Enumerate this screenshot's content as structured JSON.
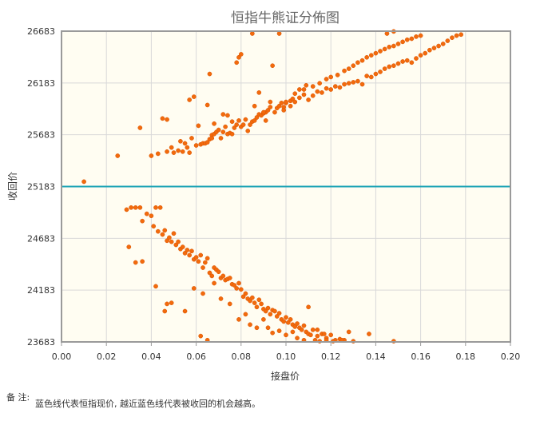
{
  "chart_data": {
    "type": "scatter",
    "title": "恒指牛熊证分佈图",
    "xlabel": "接盘价",
    "ylabel": "收回价",
    "xlim": [
      0,
      0.2
    ],
    "ylim": [
      23683,
      26683
    ],
    "x_ticks": [
      "0.00",
      "0.02",
      "0.04",
      "0.06",
      "0.08",
      "0.10",
      "0.12",
      "0.14",
      "0.16",
      "0.18",
      "0.20"
    ],
    "y_ticks": [
      "23683",
      "24183",
      "24683",
      "25183",
      "25683",
      "26183",
      "26683"
    ],
    "grid": true,
    "reference_line": {
      "y": 25183,
      "color": "#1ba3b5"
    },
    "colors": {
      "points": "#f26a0d",
      "plot_bg": "#fffdf2",
      "grid": "#d9d9d9",
      "frame": "#9a9a9a"
    },
    "series": [
      {
        "points": [
          [
            0.01,
            25230
          ],
          [
            0.025,
            25480
          ],
          [
            0.035,
            25750
          ],
          [
            0.04,
            25480
          ],
          [
            0.043,
            25500
          ],
          [
            0.045,
            25840
          ],
          [
            0.047,
            25830
          ],
          [
            0.047,
            25520
          ],
          [
            0.049,
            25560
          ],
          [
            0.05,
            25510
          ],
          [
            0.052,
            25530
          ],
          [
            0.053,
            25620
          ],
          [
            0.054,
            25520
          ],
          [
            0.055,
            25600
          ],
          [
            0.056,
            25560
          ],
          [
            0.057,
            25510
          ],
          [
            0.058,
            25650
          ],
          [
            0.06,
            25580
          ],
          [
            0.061,
            25770
          ],
          [
            0.062,
            25590
          ],
          [
            0.063,
            25600
          ],
          [
            0.064,
            25600
          ],
          [
            0.065,
            25610
          ],
          [
            0.066,
            25640
          ],
          [
            0.067,
            25680
          ],
          [
            0.068,
            25690
          ],
          [
            0.069,
            25710
          ],
          [
            0.07,
            25730
          ],
          [
            0.072,
            25710
          ],
          [
            0.073,
            25760
          ],
          [
            0.074,
            25690
          ],
          [
            0.075,
            25700
          ],
          [
            0.076,
            25690
          ],
          [
            0.077,
            25750
          ],
          [
            0.078,
            25780
          ],
          [
            0.079,
            25820
          ],
          [
            0.08,
            25760
          ],
          [
            0.081,
            25780
          ],
          [
            0.082,
            25830
          ],
          [
            0.084,
            25780
          ],
          [
            0.085,
            25810
          ],
          [
            0.086,
            25820
          ],
          [
            0.087,
            25850
          ],
          [
            0.088,
            25880
          ],
          [
            0.089,
            25870
          ],
          [
            0.09,
            25890
          ],
          [
            0.091,
            25900
          ],
          [
            0.092,
            25920
          ],
          [
            0.093,
            25950
          ],
          [
            0.095,
            25900
          ],
          [
            0.096,
            25940
          ],
          [
            0.097,
            25960
          ],
          [
            0.098,
            25990
          ],
          [
            0.099,
            25950
          ],
          [
            0.1,
            25990
          ],
          [
            0.102,
            26010
          ],
          [
            0.103,
            26030
          ],
          [
            0.104,
            26000
          ],
          [
            0.106,
            26040
          ],
          [
            0.108,
            26070
          ],
          [
            0.11,
            26020
          ],
          [
            0.112,
            26060
          ],
          [
            0.114,
            26100
          ],
          [
            0.116,
            26090
          ],
          [
            0.118,
            26130
          ],
          [
            0.12,
            26120
          ],
          [
            0.122,
            26150
          ],
          [
            0.124,
            26140
          ],
          [
            0.126,
            26170
          ],
          [
            0.128,
            26180
          ],
          [
            0.13,
            26190
          ],
          [
            0.132,
            26200
          ],
          [
            0.134,
            26170
          ],
          [
            0.136,
            26250
          ],
          [
            0.138,
            26240
          ],
          [
            0.14,
            26270
          ],
          [
            0.142,
            26290
          ],
          [
            0.144,
            26320
          ],
          [
            0.146,
            26340
          ],
          [
            0.148,
            26350
          ],
          [
            0.15,
            26370
          ],
          [
            0.152,
            26390
          ],
          [
            0.154,
            26400
          ],
          [
            0.156,
            26380
          ],
          [
            0.158,
            26420
          ],
          [
            0.16,
            26450
          ],
          [
            0.162,
            26470
          ],
          [
            0.164,
            26500
          ],
          [
            0.166,
            26520
          ],
          [
            0.168,
            26540
          ],
          [
            0.17,
            26560
          ],
          [
            0.172,
            26590
          ],
          [
            0.174,
            26620
          ],
          [
            0.176,
            26640
          ],
          [
            0.178,
            26650
          ],
          [
            0.145,
            26660
          ],
          [
            0.148,
            26680
          ],
          [
            0.057,
            26020
          ],
          [
            0.059,
            26050
          ],
          [
            0.065,
            25970
          ],
          [
            0.068,
            25790
          ],
          [
            0.072,
            25880
          ],
          [
            0.076,
            25810
          ],
          [
            0.078,
            26380
          ],
          [
            0.079,
            26430
          ],
          [
            0.08,
            26460
          ],
          [
            0.085,
            26660
          ],
          [
            0.088,
            26090
          ],
          [
            0.09,
            25900
          ],
          [
            0.093,
            26000
          ],
          [
            0.094,
            26350
          ],
          [
            0.097,
            26660
          ],
          [
            0.1,
            26000
          ],
          [
            0.104,
            26080
          ],
          [
            0.108,
            26120
          ],
          [
            0.112,
            26150
          ],
          [
            0.115,
            26180
          ],
          [
            0.118,
            26220
          ],
          [
            0.12,
            26240
          ],
          [
            0.123,
            26260
          ],
          [
            0.126,
            26300
          ],
          [
            0.128,
            26320
          ],
          [
            0.13,
            26350
          ],
          [
            0.132,
            26380
          ],
          [
            0.134,
            26400
          ],
          [
            0.136,
            26430
          ],
          [
            0.138,
            26450
          ],
          [
            0.14,
            26470
          ],
          [
            0.142,
            26490
          ],
          [
            0.144,
            26510
          ],
          [
            0.146,
            26530
          ],
          [
            0.148,
            26540
          ],
          [
            0.15,
            26560
          ],
          [
            0.152,
            26580
          ],
          [
            0.154,
            26600
          ],
          [
            0.156,
            26610
          ],
          [
            0.158,
            26630
          ],
          [
            0.16,
            26640
          ],
          [
            0.066,
            26270
          ],
          [
            0.067,
            25650
          ],
          [
            0.071,
            25650
          ],
          [
            0.074,
            25870
          ],
          [
            0.083,
            25720
          ],
          [
            0.086,
            25960
          ],
          [
            0.091,
            25820
          ],
          [
            0.099,
            25920
          ],
          [
            0.102,
            25960
          ],
          [
            0.106,
            26120
          ],
          [
            0.109,
            26160
          ],
          [
            0.029,
            24960
          ],
          [
            0.031,
            24980
          ],
          [
            0.033,
            24980
          ],
          [
            0.035,
            24980
          ],
          [
            0.036,
            24850
          ],
          [
            0.038,
            24920
          ],
          [
            0.04,
            24900
          ],
          [
            0.041,
            24800
          ],
          [
            0.042,
            24980
          ],
          [
            0.043,
            24750
          ],
          [
            0.044,
            24980
          ],
          [
            0.045,
            24720
          ],
          [
            0.046,
            24760
          ],
          [
            0.047,
            24660
          ],
          [
            0.048,
            24690
          ],
          [
            0.049,
            24650
          ],
          [
            0.05,
            24730
          ],
          [
            0.051,
            24620
          ],
          [
            0.052,
            24650
          ],
          [
            0.053,
            24580
          ],
          [
            0.054,
            24600
          ],
          [
            0.055,
            24540
          ],
          [
            0.056,
            24570
          ],
          [
            0.057,
            24520
          ],
          [
            0.058,
            24560
          ],
          [
            0.059,
            24480
          ],
          [
            0.06,
            24500
          ],
          [
            0.061,
            24460
          ],
          [
            0.062,
            24520
          ],
          [
            0.063,
            24400
          ],
          [
            0.064,
            24450
          ],
          [
            0.065,
            24490
          ],
          [
            0.066,
            24350
          ],
          [
            0.067,
            24320
          ],
          [
            0.068,
            24400
          ],
          [
            0.069,
            24380
          ],
          [
            0.07,
            24360
          ],
          [
            0.071,
            24300
          ],
          [
            0.072,
            24320
          ],
          [
            0.073,
            24280
          ],
          [
            0.074,
            24290
          ],
          [
            0.075,
            24300
          ],
          [
            0.076,
            24240
          ],
          [
            0.077,
            24230
          ],
          [
            0.078,
            24200
          ],
          [
            0.079,
            24250
          ],
          [
            0.08,
            24190
          ],
          [
            0.081,
            24120
          ],
          [
            0.082,
            24150
          ],
          [
            0.083,
            24100
          ],
          [
            0.084,
            24080
          ],
          [
            0.085,
            24110
          ],
          [
            0.086,
            24060
          ],
          [
            0.087,
            24020
          ],
          [
            0.088,
            24090
          ],
          [
            0.089,
            24050
          ],
          [
            0.09,
            24000
          ],
          [
            0.091,
            23980
          ],
          [
            0.092,
            24010
          ],
          [
            0.093,
            23950
          ],
          [
            0.094,
            23990
          ],
          [
            0.095,
            23980
          ],
          [
            0.096,
            23930
          ],
          [
            0.097,
            23960
          ],
          [
            0.098,
            23900
          ],
          [
            0.099,
            23880
          ],
          [
            0.1,
            23920
          ],
          [
            0.101,
            23870
          ],
          [
            0.102,
            23900
          ],
          [
            0.103,
            23850
          ],
          [
            0.104,
            23830
          ],
          [
            0.105,
            23860
          ],
          [
            0.106,
            23820
          ],
          [
            0.107,
            23800
          ],
          [
            0.108,
            23840
          ],
          [
            0.109,
            23780
          ],
          [
            0.11,
            23760
          ],
          [
            0.112,
            23800
          ],
          [
            0.114,
            23740
          ],
          [
            0.116,
            23760
          ],
          [
            0.118,
            23720
          ],
          [
            0.12,
            23750
          ],
          [
            0.122,
            23700
          ],
          [
            0.124,
            23710
          ],
          [
            0.126,
            23700
          ],
          [
            0.128,
            23780
          ],
          [
            0.03,
            24600
          ],
          [
            0.033,
            24450
          ],
          [
            0.036,
            24460
          ],
          [
            0.042,
            24220
          ],
          [
            0.046,
            23980
          ],
          [
            0.047,
            24050
          ],
          [
            0.049,
            24060
          ],
          [
            0.055,
            23980
          ],
          [
            0.059,
            24200
          ],
          [
            0.063,
            24150
          ],
          [
            0.068,
            24250
          ],
          [
            0.071,
            24100
          ],
          [
            0.075,
            24050
          ],
          [
            0.079,
            23900
          ],
          [
            0.082,
            23950
          ],
          [
            0.084,
            23850
          ],
          [
            0.087,
            23820
          ],
          [
            0.09,
            23900
          ],
          [
            0.092,
            23820
          ],
          [
            0.094,
            23770
          ],
          [
            0.097,
            23790
          ],
          [
            0.1,
            23750
          ],
          [
            0.103,
            23780
          ],
          [
            0.105,
            23720
          ],
          [
            0.108,
            23700
          ],
          [
            0.111,
            23750
          ],
          [
            0.113,
            23700
          ],
          [
            0.115,
            23690
          ],
          [
            0.118,
            23700
          ],
          [
            0.121,
            23690
          ],
          [
            0.125,
            23700
          ],
          [
            0.13,
            23690
          ],
          [
            0.137,
            23760
          ],
          [
            0.148,
            23690
          ],
          [
            0.062,
            23740
          ],
          [
            0.065,
            23700
          ],
          [
            0.11,
            24020
          ],
          [
            0.114,
            23800
          ],
          [
            0.117,
            23760
          ]
        ]
      }
    ]
  },
  "note": {
    "label": "备 注:",
    "text": "蓝色线代表恒指现价, 越近蓝色线代表被收回的机会越高。"
  }
}
